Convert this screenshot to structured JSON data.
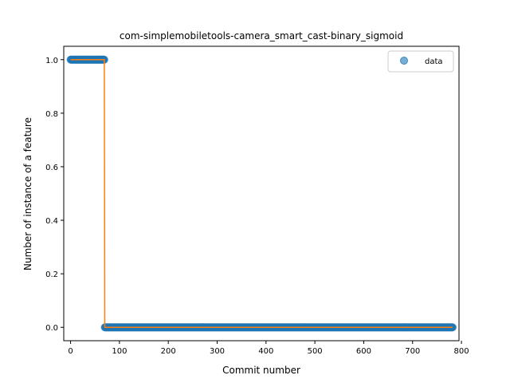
{
  "chart_data": {
    "type": "scatter",
    "title": "com-simplemobiletools-camera_smart_cast-binary_sigmoid",
    "xlabel": "Commit number",
    "ylabel": "Number of instance of a feature",
    "xlim": [
      -14,
      795
    ],
    "ylim": [
      -0.05,
      1.05
    ],
    "xticks": [
      0,
      100,
      200,
      300,
      400,
      500,
      600,
      700,
      800
    ],
    "yticks": [
      0.0,
      0.2,
      0.4,
      0.6,
      0.8,
      1.0
    ],
    "ytick_labels": [
      "0.0",
      "0.2",
      "0.4",
      "0.6",
      "0.8",
      "1.0"
    ],
    "grid": false,
    "legend": {
      "position": "top-right",
      "entries": [
        "data"
      ]
    },
    "series": [
      {
        "name": "data",
        "kind": "points",
        "color": "#1f77b4",
        "segments": [
          {
            "x_start": 0,
            "x_end": 69,
            "y": 1.0
          },
          {
            "x_start": 70,
            "x_end": 782,
            "y": 0.0
          }
        ]
      },
      {
        "kind": "step-line",
        "color": "#ff7f0e",
        "points": [
          [
            0,
            1.0
          ],
          [
            69,
            1.0
          ],
          [
            70,
            0.0
          ],
          [
            782,
            0.0
          ]
        ]
      }
    ]
  }
}
